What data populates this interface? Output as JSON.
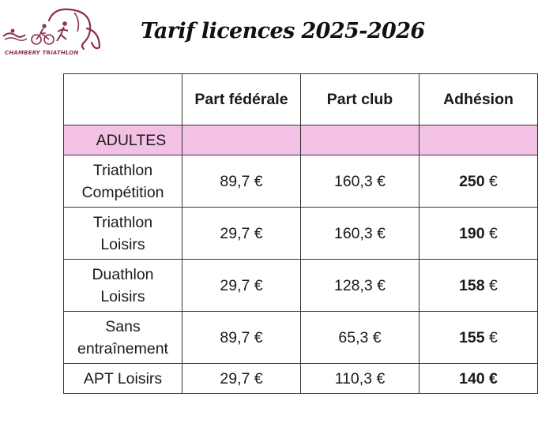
{
  "header": {
    "logo_text": "CHAMBERY TRIATHLON",
    "title": "Tarif licences 2025-2026"
  },
  "table": {
    "columns": [
      "",
      "Part fédérale",
      "Part club",
      "Adhésion"
    ],
    "section": "ADULTES",
    "rows": [
      {
        "label": "Triathlon Compétition",
        "federale": "89,7 €",
        "club": "160,3 €",
        "adhesion_value": "250",
        "adhesion_unit": "€"
      },
      {
        "label": "Triathlon Loisirs",
        "federale": "29,7 €",
        "club": "160,3 €",
        "adhesion_value": "190",
        "adhesion_unit": "€"
      },
      {
        "label": "Duathlon Loisirs",
        "federale": "29,7 €",
        "club": "128,3 €",
        "adhesion_value": "158",
        "adhesion_unit": "€"
      },
      {
        "label": "Sans entraînement",
        "federale": "89,7 €",
        "club": "65,3 €",
        "adhesion_value": "155",
        "adhesion_unit": "€"
      },
      {
        "label": "APT Loisirs",
        "federale": "29,7 €",
        "club": "110,3 €",
        "adhesion_full": "140 €"
      }
    ]
  },
  "colors": {
    "section_background": "#f2c1e4",
    "logo_accent": "#8a3050",
    "border": "#333333"
  }
}
